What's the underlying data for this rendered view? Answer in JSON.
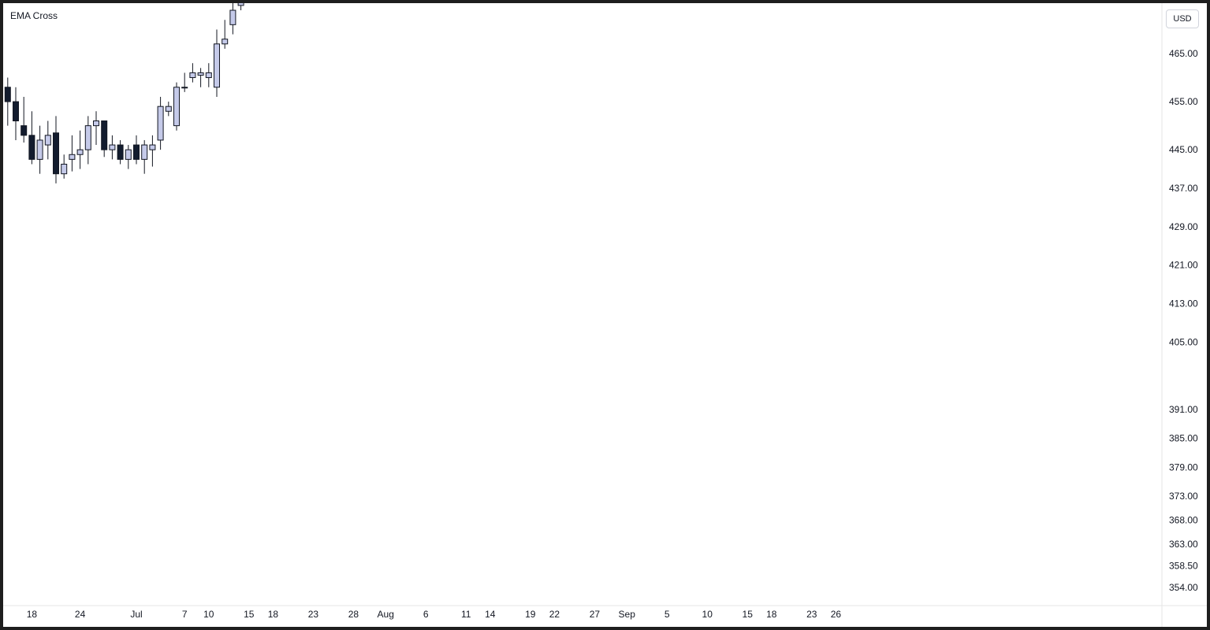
{
  "indicator_title": "EMA Cross",
  "currency_button": "USD",
  "colors": {
    "candle_up": "#c5cae9",
    "candle_down": "#131c2e",
    "ema_fast": "#2424d8",
    "ema_slow": "#e8457c",
    "level_blue": "#2a4d6e",
    "level_red": "#e0202e",
    "tag_pink": "#e91e63",
    "tag_blue_light": "#2962ff",
    "tag_blue_dark": "#0000ee",
    "tag_black": "#131722",
    "tag_red": "#e01c2c"
  },
  "chart_data": {
    "type": "candlestick",
    "title": "EMA Cross",
    "y_ticks": [
      "465.00",
      "455.00",
      "445.00",
      "437.00",
      "429.00",
      "421.00",
      "413.00",
      "405.00",
      "391.00",
      "385.00",
      "379.00",
      "373.00",
      "368.00",
      "363.00",
      "358.50",
      "354.00"
    ],
    "y_tick_values": [
      465,
      455,
      445,
      437,
      429,
      421,
      413,
      405,
      391,
      385,
      379,
      373,
      368,
      363,
      358.5,
      354
    ],
    "x_ticks": [
      {
        "label": "18",
        "x": 12
      },
      {
        "label": "24",
        "x": 18
      },
      {
        "label": "Jul",
        "x": 25
      },
      {
        "label": "7",
        "x": 31
      },
      {
        "label": "10",
        "x": 34
      },
      {
        "label": "15",
        "x": 39
      },
      {
        "label": "18",
        "x": 42
      },
      {
        "label": "23",
        "x": 47
      },
      {
        "label": "28",
        "x": 52
      },
      {
        "label": "Aug",
        "x": 56
      },
      {
        "label": "6",
        "x": 61
      },
      {
        "label": "11",
        "x": 66
      },
      {
        "label": "14",
        "x": 69
      },
      {
        "label": "19",
        "x": 74
      },
      {
        "label": "22",
        "x": 77
      },
      {
        "label": "27",
        "x": 82
      },
      {
        "label": "Sep",
        "x": 86
      },
      {
        "label": "5",
        "x": 91
      },
      {
        "label": "10",
        "x": 96
      },
      {
        "label": "15",
        "x": 101
      },
      {
        "label": "18",
        "x": 104
      },
      {
        "label": "23",
        "x": 109
      },
      {
        "label": "26",
        "x": 112
      }
    ],
    "candles": [
      {
        "x": 9,
        "o": 458.0,
        "h": 460.0,
        "l": 450.0,
        "c": 455.0
      },
      {
        "x": 10,
        "o": 455.0,
        "h": 458.0,
        "l": 447.0,
        "c": 451.0
      },
      {
        "x": 11,
        "o": 450.0,
        "h": 456.0,
        "l": 446.5,
        "c": 448.0
      },
      {
        "x": 12,
        "o": 448.0,
        "h": 453.0,
        "l": 442.0,
        "c": 443.0
      },
      {
        "x": 13,
        "o": 443.0,
        "h": 450.0,
        "l": 440.0,
        "c": 447.0
      },
      {
        "x": 14,
        "o": 446.0,
        "h": 451.0,
        "l": 443.0,
        "c": 448.0
      },
      {
        "x": 15,
        "o": 448.5,
        "h": 452.0,
        "l": 438.0,
        "c": 440.0
      },
      {
        "x": 16,
        "o": 440.0,
        "h": 444.0,
        "l": 439.0,
        "c": 442.0
      },
      {
        "x": 17,
        "o": 443.0,
        "h": 448.0,
        "l": 440.5,
        "c": 444.0
      },
      {
        "x": 18,
        "o": 444.0,
        "h": 449.0,
        "l": 441.0,
        "c": 445.0
      },
      {
        "x": 19,
        "o": 445.0,
        "h": 452.0,
        "l": 442.0,
        "c": 450.0
      },
      {
        "x": 20,
        "o": 450.0,
        "h": 453.0,
        "l": 446.0,
        "c": 451.0
      },
      {
        "x": 21,
        "o": 451.0,
        "h": 451.0,
        "l": 443.5,
        "c": 445.0
      },
      {
        "x": 22,
        "o": 445.0,
        "h": 448.0,
        "l": 443.0,
        "c": 446.0
      },
      {
        "x": 23,
        "o": 446.0,
        "h": 447.0,
        "l": 442.0,
        "c": 443.0
      },
      {
        "x": 24,
        "o": 443.0,
        "h": 446.0,
        "l": 441.0,
        "c": 445.0
      },
      {
        "x": 25,
        "o": 446.0,
        "h": 448.0,
        "l": 442.0,
        "c": 443.0
      },
      {
        "x": 26,
        "o": 443.0,
        "h": 447.0,
        "l": 440.0,
        "c": 446.0
      },
      {
        "x": 27,
        "o": 445.0,
        "h": 448.0,
        "l": 441.5,
        "c": 446.0
      },
      {
        "x": 28,
        "o": 447.0,
        "h": 456.0,
        "l": 445.0,
        "c": 454.0
      },
      {
        "x": 29,
        "o": 453.0,
        "h": 455.0,
        "l": 452.0,
        "c": 454.0
      },
      {
        "x": 30,
        "o": 450.0,
        "h": 459.0,
        "l": 449.0,
        "c": 458.0
      },
      {
        "x": 31,
        "o": 458.0,
        "h": 461.0,
        "l": 457.0,
        "c": 458.0
      },
      {
        "x": 32,
        "o": 460.0,
        "h": 463.0,
        "l": 459.0,
        "c": 461.0
      },
      {
        "x": 33,
        "o": 460.5,
        "h": 462.0,
        "l": 458.0,
        "c": 461.0
      },
      {
        "x": 34,
        "o": 460.0,
        "h": 463.0,
        "l": 458.0,
        "c": 461.0
      },
      {
        "x": 35,
        "o": 458.0,
        "h": 470.0,
        "l": 456.0,
        "c": 467.0
      },
      {
        "x": 36,
        "o": 467.0,
        "h": 472.0,
        "l": 466.0,
        "c": 468.0
      },
      {
        "x": 37,
        "o": 471.0,
        "h": 477.0,
        "l": 469.0,
        "c": 474.0
      },
      {
        "x": 38,
        "o": 475.0,
        "h": 482.0,
        "l": 474.0,
        "c": 478.0
      }
    ]
  }
}
